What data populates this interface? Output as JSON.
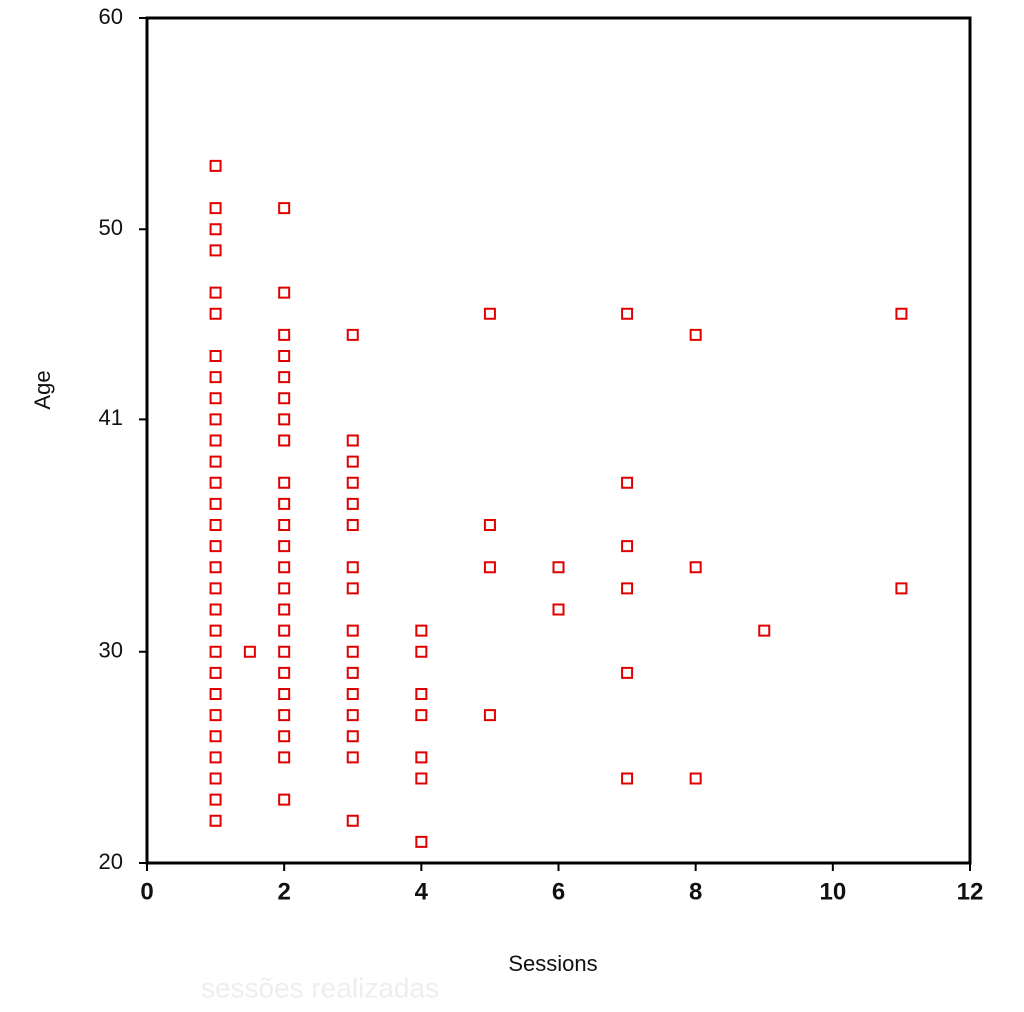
{
  "chart_data": {
    "type": "scatter",
    "x_label": "Sessions",
    "y_label": "Age",
    "background_text": "sessões realizadas",
    "xlim": [
      0,
      12
    ],
    "xticks": [
      0,
      2,
      4,
      6,
      8,
      10,
      12
    ],
    "ylim": [
      20,
      60
    ],
    "yticks": [
      20,
      30,
      41,
      50,
      60
    ],
    "series": [
      {
        "color": "#e00000",
        "x": [
          1,
          1,
          1,
          1,
          1,
          1,
          1,
          1,
          1,
          1,
          1,
          1,
          1,
          1,
          1,
          1,
          1,
          1,
          1,
          1,
          1,
          1,
          1,
          1,
          1,
          1,
          1,
          1,
          1,
          1.5,
          2,
          2,
          2,
          2,
          2,
          2,
          2,
          2,
          2,
          2,
          2,
          2,
          2,
          2,
          2,
          2,
          2,
          2,
          2,
          2,
          2,
          2,
          2,
          3,
          3,
          3,
          3,
          3,
          3,
          3,
          3,
          3,
          3,
          3,
          3,
          3,
          3,
          3,
          3,
          4,
          4,
          4,
          4,
          4,
          4,
          4,
          5,
          5,
          5,
          5,
          6,
          6,
          7,
          7,
          7,
          7,
          7,
          7,
          8,
          8,
          8,
          9,
          11,
          11
        ],
        "values": [
          53,
          51,
          50,
          49,
          47,
          46,
          44,
          43,
          42,
          41,
          40,
          39,
          38,
          37,
          36,
          35,
          34,
          33,
          32,
          31,
          30,
          29,
          28,
          27,
          26,
          25,
          24,
          23,
          22,
          30,
          51,
          47,
          45,
          44,
          43,
          42,
          41,
          40,
          38,
          37,
          36,
          35,
          34,
          33,
          32,
          31,
          30,
          29,
          28,
          27,
          26,
          25,
          23,
          45,
          40,
          39,
          38,
          37,
          36,
          34,
          33,
          31,
          30,
          29,
          28,
          27,
          26,
          25,
          22,
          31,
          30,
          28,
          27,
          25,
          24,
          21,
          46,
          36,
          34,
          27,
          34,
          32,
          46,
          38,
          35,
          33,
          29,
          24,
          45,
          34,
          24,
          31,
          46,
          33
        ]
      }
    ]
  }
}
